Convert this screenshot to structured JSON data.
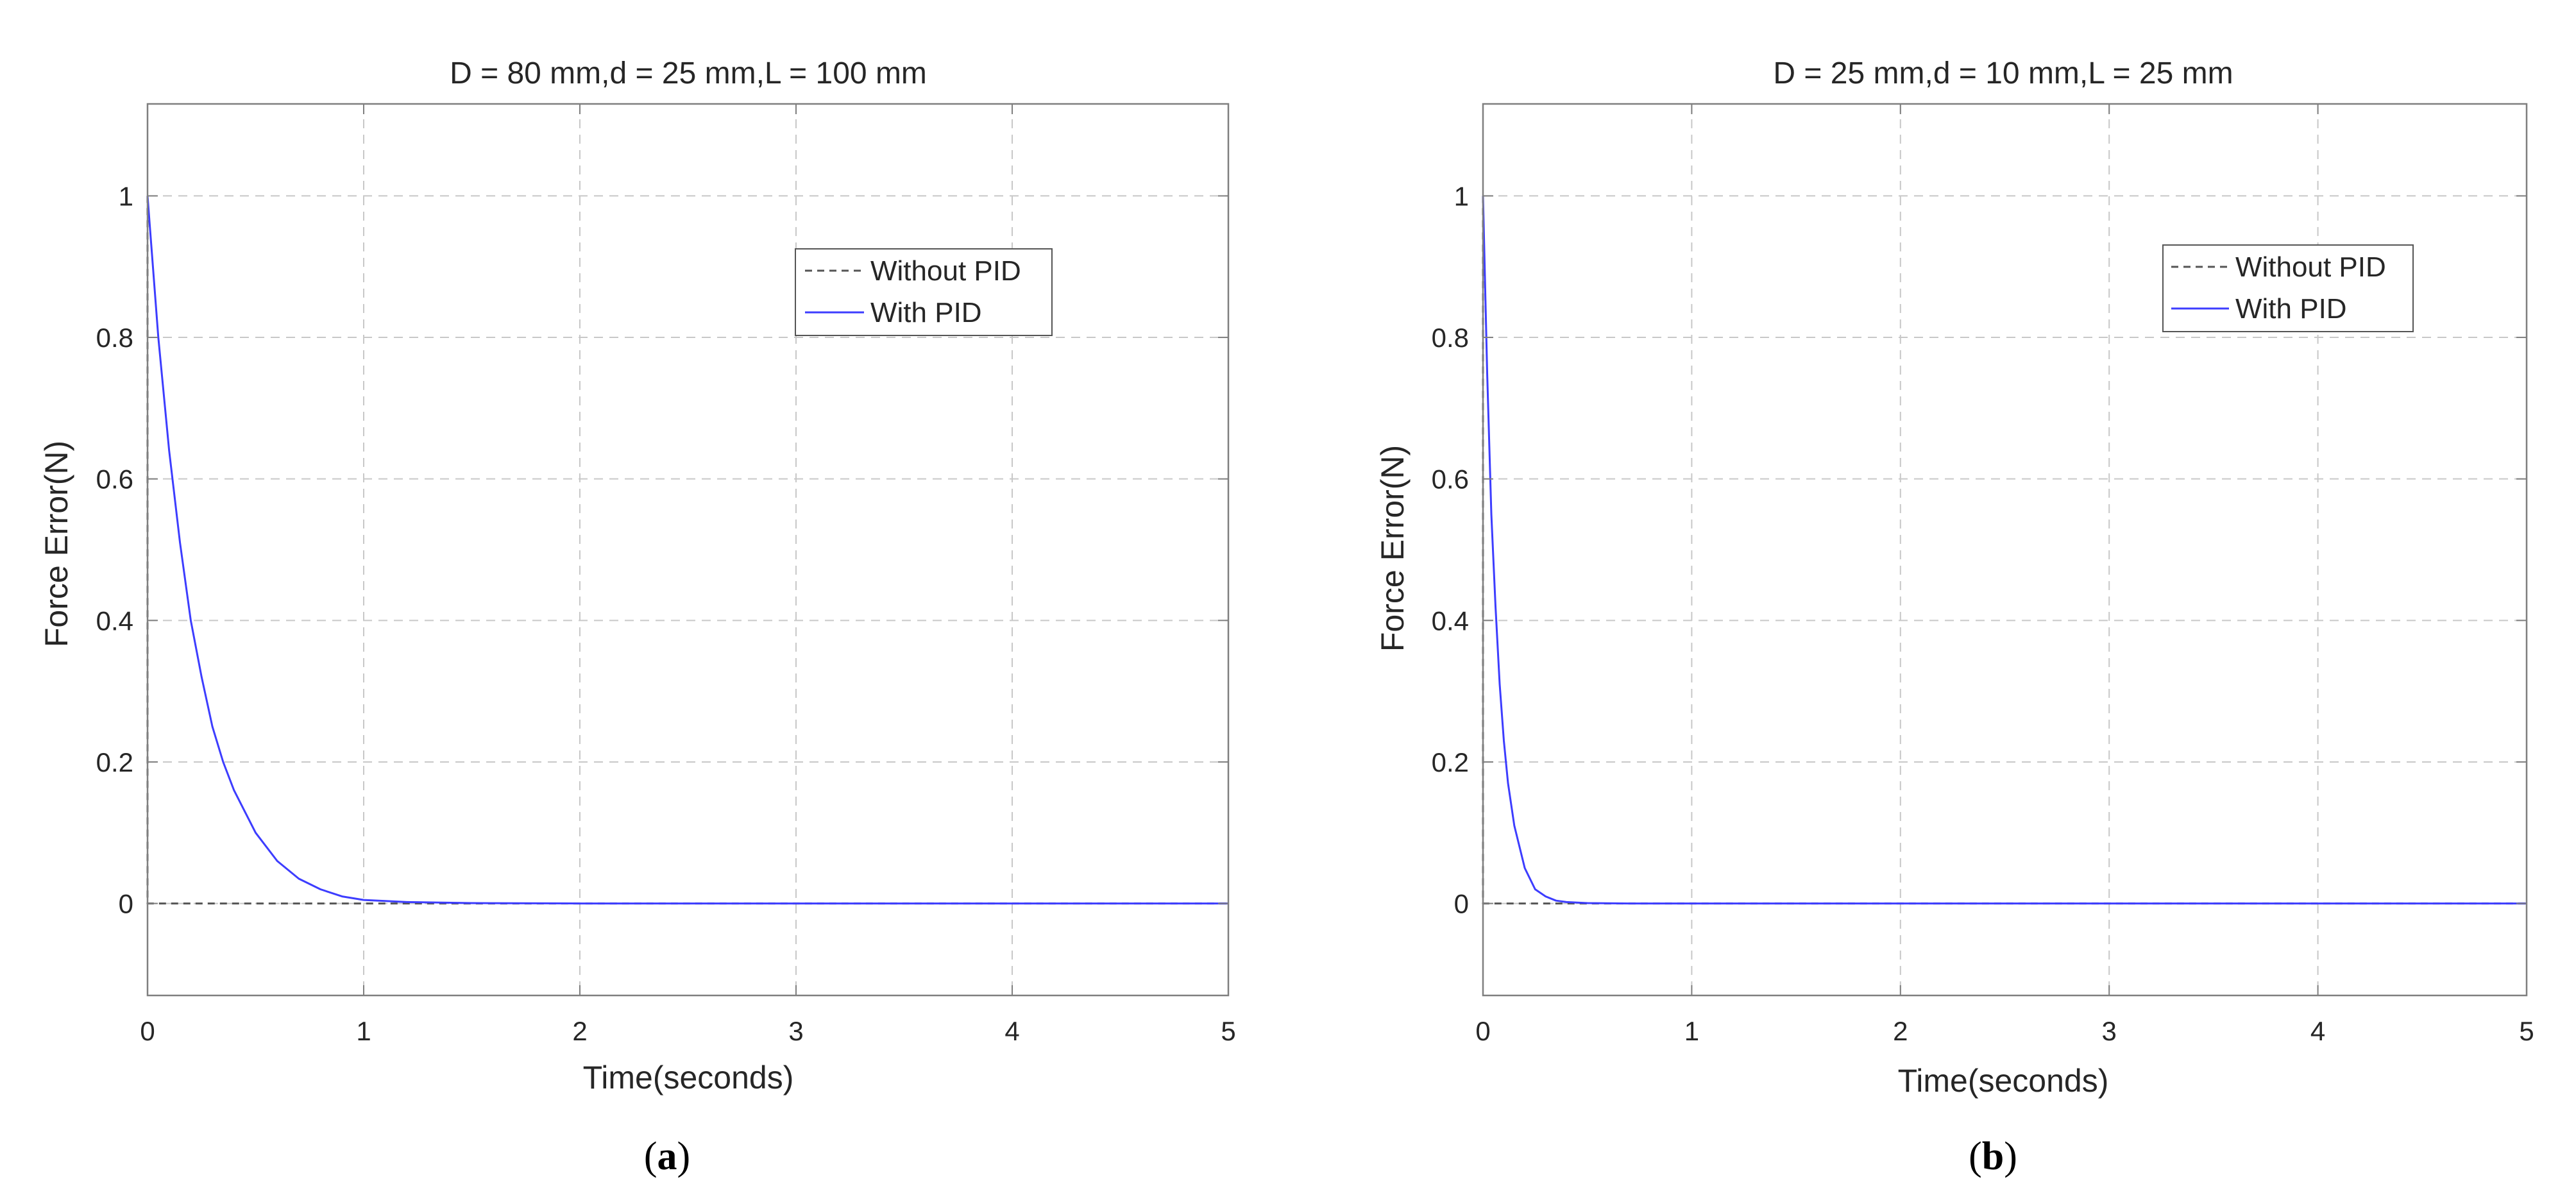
{
  "chart_data": [
    {
      "type": "line",
      "panel_label": "a",
      "title": "D = 80 mm,d = 25 mm,L = 100 mm",
      "xlabel": "Time(seconds)",
      "ylabel": "Force Error(N)",
      "xlim": [
        0,
        5
      ],
      "ylim": [
        -0.13,
        1.13
      ],
      "xticks": [
        0,
        1,
        2,
        3,
        4,
        5
      ],
      "yticks": [
        0,
        0.2,
        0.4,
        0.6,
        0.8,
        1
      ],
      "xtick_labels": [
        "0",
        "1",
        "2",
        "3",
        "4",
        "5"
      ],
      "ytick_labels": [
        "0",
        "0.2",
        "0.4",
        "0.6",
        "0.8",
        "1"
      ],
      "grid": true,
      "legend_position": "top-right",
      "series": [
        {
          "name": "Without PID",
          "style": "dashed",
          "color": "#555555",
          "x": [
            0,
            0,
            0.005,
            5
          ],
          "y": [
            1,
            0,
            0,
            0
          ]
        },
        {
          "name": "With PID",
          "style": "solid",
          "color": "#3d3dff",
          "x": [
            0,
            0.05,
            0.1,
            0.15,
            0.2,
            0.25,
            0.3,
            0.35,
            0.4,
            0.5,
            0.6,
            0.7,
            0.8,
            0.9,
            1.0,
            1.2,
            1.5,
            2,
            3,
            4,
            5
          ],
          "y": [
            1,
            0.8,
            0.64,
            0.51,
            0.4,
            0.32,
            0.25,
            0.2,
            0.16,
            0.1,
            0.06,
            0.035,
            0.02,
            0.01,
            0.005,
            0.002,
            0.0005,
            0,
            0,
            0,
            0
          ]
        }
      ]
    },
    {
      "type": "line",
      "panel_label": "b",
      "title": "D = 25 mm,d = 10 mm,L = 25 mm",
      "xlabel": "Time(seconds)",
      "ylabel": "Force Error(N)",
      "xlim": [
        0,
        5
      ],
      "ylim": [
        -0.13,
        1.13
      ],
      "xticks": [
        0,
        1,
        2,
        3,
        4,
        5
      ],
      "yticks": [
        0,
        0.2,
        0.4,
        0.6,
        0.8,
        1
      ],
      "xtick_labels": [
        "0",
        "1",
        "2",
        "3",
        "4",
        "5"
      ],
      "ytick_labels": [
        "0",
        "0.2",
        "0.4",
        "0.6",
        "0.8",
        "1"
      ],
      "grid": true,
      "legend_position": "top-right",
      "series": [
        {
          "name": "Without PID",
          "style": "dashed",
          "color": "#555555",
          "x": [
            0,
            0,
            0.005,
            5
          ],
          "y": [
            1,
            0,
            0,
            0
          ]
        },
        {
          "name": "With PID",
          "style": "solid",
          "color": "#3d3dff",
          "x": [
            0,
            0.02,
            0.04,
            0.06,
            0.08,
            0.1,
            0.12,
            0.15,
            0.2,
            0.25,
            0.3,
            0.35,
            0.4,
            0.5,
            0.7,
            1,
            2,
            3,
            4,
            5
          ],
          "y": [
            1,
            0.75,
            0.55,
            0.42,
            0.31,
            0.23,
            0.17,
            0.11,
            0.05,
            0.02,
            0.01,
            0.004,
            0.002,
            0.0005,
            0,
            0,
            0,
            0,
            0,
            0
          ]
        }
      ]
    }
  ],
  "colors": {
    "axes": "#7f7f7f",
    "grid": "#c8c8c8",
    "text": "#262626"
  }
}
